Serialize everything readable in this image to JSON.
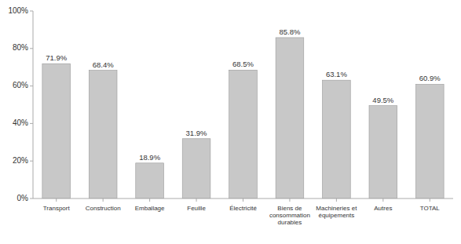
{
  "chart_data": {
    "type": "bar",
    "categories": [
      "Transport",
      "Construction",
      "Emballage",
      "Feuille",
      "Électricité",
      "Biens de\nconsommation\ndurables",
      "Machineries et\néquipements",
      "Autres",
      "TOTAL"
    ],
    "values": [
      71.9,
      68.4,
      18.9,
      31.9,
      68.5,
      85.8,
      63.1,
      49.5,
      60.9
    ],
    "value_labels": [
      "71.9%",
      "68.4%",
      "18.9%",
      "31.9%",
      "68.5%",
      "85.8%",
      "63.1%",
      "49.5%",
      "60.9%"
    ],
    "data_labels": true,
    "color": "#c8c8c8",
    "ylim": [
      0,
      100
    ],
    "yticks": [
      {
        "value": 0,
        "label": "0%"
      },
      {
        "value": 20,
        "label": "20%"
      },
      {
        "value": 40,
        "label": "40%"
      },
      {
        "value": 60,
        "label": "60%"
      },
      {
        "value": 80,
        "label": "80%"
      },
      {
        "value": 100,
        "label": "100%"
      }
    ],
    "grid": false
  }
}
